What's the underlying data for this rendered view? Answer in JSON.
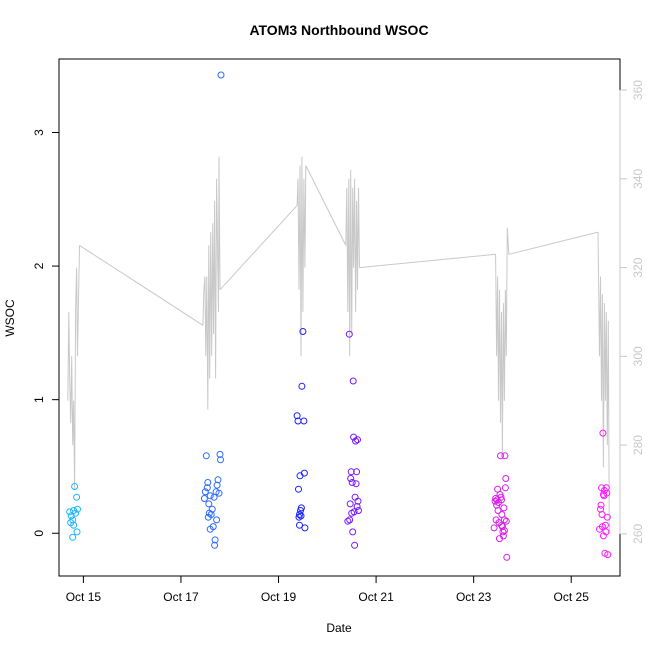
{
  "chart_data": {
    "type": "scatter",
    "title": "ATOM3 Northbound WSOC",
    "xlabel": "Date",
    "ylabel": "WSOC",
    "x_unit": "day of October",
    "xlim": [
      14.5,
      26.0
    ],
    "ylim": [
      -0.32,
      3.55
    ],
    "y2lim": [
      250.5,
      367
    ],
    "x_ticks": [
      {
        "value": 15,
        "label": "Oct 15"
      },
      {
        "value": 17,
        "label": "Oct 17"
      },
      {
        "value": 19,
        "label": "Oct 19"
      },
      {
        "value": 21,
        "label": "Oct 21"
      },
      {
        "value": 23,
        "label": "Oct 23"
      },
      {
        "value": 25,
        "label": "Oct 25"
      }
    ],
    "y_ticks": [
      0,
      1,
      2,
      3
    ],
    "y2_ticks": [
      260,
      280,
      300,
      320,
      340,
      360
    ],
    "series": [
      {
        "role": "scatter",
        "axis": "left",
        "colors": [
          "#1ab6ff",
          "#2a6bff",
          "#1a22ff",
          "#7a18ff",
          "#d61ee8",
          "#ff1aff"
        ],
        "points": [
          [
            14.72,
            0.16
          ],
          [
            14.75,
            0.13
          ],
          [
            14.78,
            -0.03
          ],
          [
            14.8,
            0.17
          ],
          [
            14.82,
            0.35
          ],
          [
            14.78,
            0.1
          ],
          [
            14.8,
            0.06
          ],
          [
            14.84,
            0.15
          ],
          [
            14.86,
            0.27
          ],
          [
            14.88,
            0.18
          ],
          [
            14.87,
            0.01
          ],
          [
            14.74,
            0.08
          ],
          [
            17.48,
            0.26
          ],
          [
            17.5,
            0.31
          ],
          [
            17.52,
            0.58
          ],
          [
            17.54,
            0.34
          ],
          [
            17.55,
            0.38
          ],
          [
            17.56,
            0.12
          ],
          [
            17.58,
            0.15
          ],
          [
            17.6,
            0.28
          ],
          [
            17.62,
            0.14
          ],
          [
            17.64,
            0.18
          ],
          [
            17.66,
            0.05
          ],
          [
            17.68,
            0.27
          ],
          [
            17.7,
            -0.05
          ],
          [
            17.72,
            0.31
          ],
          [
            17.74,
            0.36
          ],
          [
            17.76,
            0.4
          ],
          [
            17.78,
            0.3
          ],
          [
            17.8,
            0.59
          ],
          [
            17.81,
            0.55
          ],
          [
            17.69,
            -0.09
          ],
          [
            17.73,
            0.1
          ],
          [
            17.6,
            0.03
          ],
          [
            17.57,
            0.22
          ],
          [
            17.82,
            3.43
          ],
          [
            19.38,
            0.88
          ],
          [
            19.4,
            0.84
          ],
          [
            19.42,
            0.12
          ],
          [
            19.43,
            0.06
          ],
          [
            19.44,
            0.43
          ],
          [
            19.45,
            0.17
          ],
          [
            19.46,
            0.13
          ],
          [
            19.47,
            0.19
          ],
          [
            19.48,
            1.1
          ],
          [
            19.5,
            1.51
          ],
          [
            19.52,
            0.84
          ],
          [
            19.53,
            0.45
          ],
          [
            19.54,
            0.04
          ],
          [
            19.41,
            0.33
          ],
          [
            19.43,
            0.14
          ],
          [
            20.42,
            0.09
          ],
          [
            20.45,
            1.49
          ],
          [
            20.47,
            0.22
          ],
          [
            20.48,
            0.41
          ],
          [
            20.49,
            0.46
          ],
          [
            20.51,
            0.38
          ],
          [
            20.53,
            1.14
          ],
          [
            20.54,
            0.72
          ],
          [
            20.55,
            0.16
          ],
          [
            20.57,
            0.27
          ],
          [
            20.58,
            0.69
          ],
          [
            20.6,
            0.46
          ],
          [
            20.62,
            0.7
          ],
          [
            20.63,
            0.24
          ],
          [
            20.64,
            0.17
          ],
          [
            20.52,
            0.01
          ],
          [
            20.56,
            -0.09
          ],
          [
            20.59,
            0.37
          ],
          [
            20.61,
            0.2
          ],
          [
            20.46,
            0.1
          ],
          [
            20.5,
            0.15
          ],
          [
            23.42,
            0.04
          ],
          [
            23.44,
            0.24
          ],
          [
            23.45,
            0.26
          ],
          [
            23.46,
            0.1
          ],
          [
            23.47,
            0.21
          ],
          [
            23.48,
            0.25
          ],
          [
            23.49,
            0.33
          ],
          [
            23.5,
            0.17
          ],
          [
            23.52,
            0.08
          ],
          [
            23.53,
            -0.04
          ],
          [
            23.54,
            0.29
          ],
          [
            23.55,
            0.58
          ],
          [
            23.56,
            0.27
          ],
          [
            23.57,
            0.06
          ],
          [
            23.58,
            0.14
          ],
          [
            23.59,
            0.05
          ],
          [
            23.6,
            0.01
          ],
          [
            23.62,
            0.19
          ],
          [
            23.63,
            0.1
          ],
          [
            23.64,
            0.58
          ],
          [
            23.65,
            0.34
          ],
          [
            23.66,
            0.41
          ],
          [
            23.67,
            0.09
          ],
          [
            23.68,
            -0.18
          ],
          [
            23.61,
            -0.02
          ],
          [
            23.51,
            0.23
          ],
          [
            23.57,
            0.25
          ],
          [
            23.63,
            0.02
          ],
          [
            25.58,
            0.03
          ],
          [
            25.6,
            0.18
          ],
          [
            25.62,
            0.34
          ],
          [
            25.63,
            0.14
          ],
          [
            25.64,
            0.05
          ],
          [
            25.65,
            0.75
          ],
          [
            25.66,
            0.29
          ],
          [
            25.67,
            0.28
          ],
          [
            25.68,
            0.32
          ],
          [
            25.69,
            -0.15
          ],
          [
            25.7,
            0.06
          ],
          [
            25.71,
            0.01
          ],
          [
            25.72,
            0.34
          ],
          [
            25.73,
            0.3
          ],
          [
            25.74,
            0.12
          ],
          [
            25.75,
            -0.16
          ],
          [
            25.61,
            0.21
          ],
          [
            25.66,
            -0.02
          ]
        ]
      },
      {
        "role": "line",
        "axis": "right",
        "color": "#c8c8c8",
        "segments": [
          [
            [
              14.68,
              290
            ],
            [
              14.7,
              310
            ],
            [
              14.72,
              295
            ],
            [
              14.74,
              285
            ],
            [
              14.76,
              300
            ],
            [
              14.78,
              280
            ],
            [
              14.8,
              290
            ],
            [
              14.82,
              270
            ],
            [
              14.84,
              310
            ],
            [
              14.86,
              320
            ],
            [
              14.88,
              300
            ],
            [
              14.92,
              325
            ]
          ],
          [
            [
              14.92,
              325
            ],
            [
              17.45,
              307
            ]
          ],
          [
            [
              17.45,
              307
            ],
            [
              17.47,
              315
            ],
            [
              17.49,
              318
            ],
            [
              17.51,
              300
            ],
            [
              17.53,
              318
            ],
            [
              17.55,
              288
            ],
            [
              17.57,
              325
            ],
            [
              17.59,
              295
            ],
            [
              17.61,
              328
            ],
            [
              17.63,
              300
            ],
            [
              17.65,
              330
            ],
            [
              17.67,
              305
            ],
            [
              17.69,
              335
            ],
            [
              17.71,
              295
            ],
            [
              17.73,
              340
            ],
            [
              17.75,
              325
            ],
            [
              17.77,
              310
            ],
            [
              17.78,
              345
            ],
            [
              17.8,
              315
            ]
          ],
          [
            [
              17.8,
              315
            ],
            [
              19.38,
              334
            ]
          ],
          [
            [
              19.38,
              334
            ],
            [
              19.4,
              340
            ],
            [
              19.42,
              315
            ],
            [
              19.44,
              343
            ],
            [
              19.46,
              300
            ],
            [
              19.48,
              345
            ],
            [
              19.5,
              310
            ],
            [
              19.52,
              340
            ],
            [
              19.54,
              320
            ],
            [
              19.56,
              343
            ]
          ],
          [
            [
              19.56,
              343
            ],
            [
              20.38,
              325
            ]
          ],
          [
            [
              20.38,
              325
            ],
            [
              20.4,
              338
            ],
            [
              20.42,
              310
            ],
            [
              20.44,
              340
            ],
            [
              20.46,
              300
            ],
            [
              20.48,
              342
            ],
            [
              20.5,
              305
            ],
            [
              20.52,
              338
            ],
            [
              20.54,
              320
            ],
            [
              20.56,
              340
            ],
            [
              20.58,
              310
            ],
            [
              20.6,
              335
            ],
            [
              20.62,
              315
            ],
            [
              20.64,
              338
            ],
            [
              20.66,
              320
            ]
          ],
          [
            [
              20.66,
              320
            ],
            [
              23.45,
              323
            ]
          ],
          [
            [
              23.45,
              323
            ],
            [
              23.47,
              300
            ],
            [
              23.49,
              318
            ],
            [
              23.51,
              290
            ],
            [
              23.53,
              315
            ],
            [
              23.55,
              285
            ],
            [
              23.57,
              310
            ],
            [
              23.59,
              278
            ],
            [
              23.61,
              312
            ],
            [
              23.63,
              290
            ],
            [
              23.65,
              315
            ],
            [
              23.67,
              300
            ],
            [
              23.69,
              329
            ],
            [
              23.72,
              323
            ]
          ],
          [
            [
              23.72,
              323
            ],
            [
              25.55,
              328
            ]
          ],
          [
            [
              25.55,
              328
            ],
            [
              25.58,
              300
            ],
            [
              25.6,
              318
            ],
            [
              25.62,
              290
            ],
            [
              25.64,
              314
            ],
            [
              25.66,
              275
            ],
            [
              25.68,
              312
            ],
            [
              25.7,
              290
            ],
            [
              25.72,
              310
            ],
            [
              25.74,
              280
            ],
            [
              25.76,
              308
            ],
            [
              25.78,
              260
            ]
          ]
        ]
      }
    ],
    "grid": false,
    "legend": "none"
  }
}
